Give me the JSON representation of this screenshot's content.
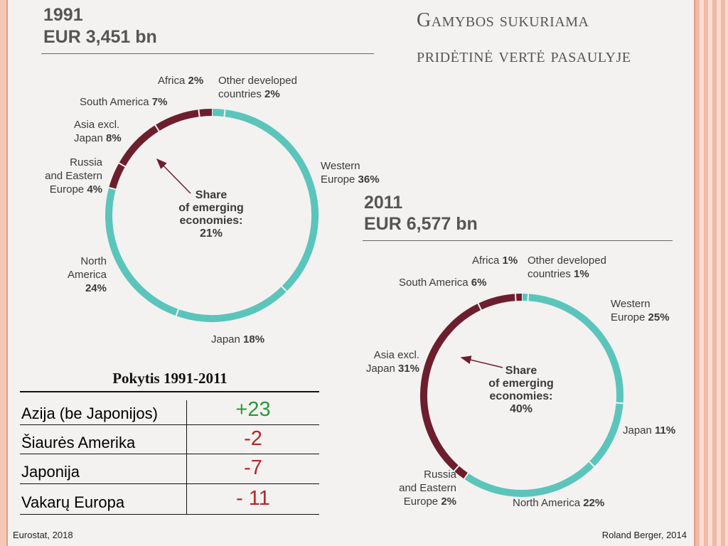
{
  "title": {
    "line1": "Gamybos sukuriama",
    "line2": "pridėtinė vertė pasaulyje"
  },
  "colors": {
    "developed": "#5bc5bc",
    "emerging": "#6d1e2e",
    "plus": "#2a9a3a",
    "minus": "#b0282a"
  },
  "chart_data": [
    {
      "type": "pie",
      "year_label": "1991",
      "total_label": "EUR 3,451 bn",
      "center_label": [
        "Share",
        "of emerging",
        "economies:",
        "21%"
      ],
      "slices": [
        {
          "name": "Other developed countries",
          "value": 2,
          "group": "developed"
        },
        {
          "name": "Western Europe",
          "value": 36,
          "group": "developed"
        },
        {
          "name": "Japan",
          "value": 18,
          "group": "developed"
        },
        {
          "name": "North America",
          "value": 24,
          "group": "developed"
        },
        {
          "name": "Russia and Eastern Europe",
          "value": 4,
          "group": "emerging"
        },
        {
          "name": "Asia excl. Japan",
          "value": 8,
          "group": "emerging"
        },
        {
          "name": "South America",
          "value": 7,
          "group": "emerging"
        },
        {
          "name": "Africa",
          "value": 2,
          "group": "emerging"
        }
      ],
      "labels": {
        "africa": {
          "name": "Africa",
          "pct": "2%"
        },
        "other": {
          "name1": "Other developed",
          "name2": "countries",
          "pct": "2%"
        },
        "western": {
          "name1": "Western",
          "name2": "Europe",
          "pct": "36%"
        },
        "japan": {
          "name": "Japan",
          "pct": "18%"
        },
        "north": {
          "name1": "North",
          "name2": "America",
          "pct": "24%"
        },
        "russia": {
          "name1": "Russia",
          "name2": "and Eastern",
          "name3": "Europe",
          "pct": "4%"
        },
        "asia": {
          "name1": "Asia excl.",
          "name2": "Japan",
          "pct": "8%"
        },
        "south": {
          "name": "South America",
          "pct": "7%"
        }
      }
    },
    {
      "type": "pie",
      "year_label": "2011",
      "total_label": "EUR 6,577 bn",
      "center_label": [
        "Share",
        "of emerging",
        "economies:",
        "40%"
      ],
      "slices": [
        {
          "name": "Other developed countries",
          "value": 1,
          "group": "developed"
        },
        {
          "name": "Western Europe",
          "value": 25,
          "group": "developed"
        },
        {
          "name": "Japan",
          "value": 11,
          "group": "developed"
        },
        {
          "name": "North America",
          "value": 22,
          "group": "developed"
        },
        {
          "name": "Russia and Eastern Europe",
          "value": 2,
          "group": "emerging"
        },
        {
          "name": "Asia excl. Japan",
          "value": 31,
          "group": "emerging"
        },
        {
          "name": "South America",
          "value": 6,
          "group": "emerging"
        },
        {
          "name": "Africa",
          "value": 1,
          "group": "emerging"
        }
      ],
      "labels": {
        "africa": {
          "name": "Africa",
          "pct": "1%"
        },
        "other": {
          "name1": "Other developed",
          "name2": "countries",
          "pct": "1%"
        },
        "western": {
          "name1": "Western",
          "name2": "Europe",
          "pct": "25%"
        },
        "japan": {
          "name": "Japan",
          "pct": "11%"
        },
        "north": {
          "name": "North America",
          "pct": "22%"
        },
        "russia": {
          "name1": "Russia",
          "name2": "and Eastern",
          "name3": "Europe",
          "pct": "2%"
        },
        "asia": {
          "name1": "Asia excl.",
          "name2": "Japan",
          "pct": "31%"
        },
        "south": {
          "name": "South America",
          "pct": "6%"
        }
      }
    },
    {
      "type": "table",
      "title": "Pokytis 1991-2011",
      "rows": [
        {
          "region": "Azija (be Japonijos)",
          "change": "+23"
        },
        {
          "region": "Šiaurės Amerika",
          "change": "-2"
        },
        {
          "region": "Japonija",
          "change": "-7"
        },
        {
          "region": "Vakarų Europa",
          "change": "- 11"
        }
      ]
    }
  ],
  "footer": {
    "left": "Eurostat, 2018",
    "right": "Roland Berger, 2014"
  }
}
